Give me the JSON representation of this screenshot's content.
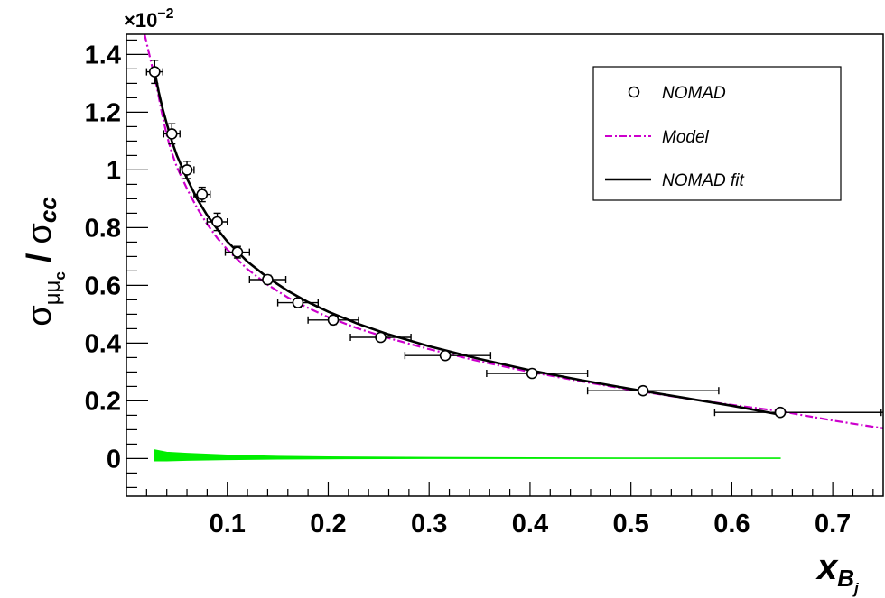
{
  "chart_data": {
    "type": "scatter",
    "title": "",
    "ylabel": "σμμc / σcc",
    "ylabel_parts": {
      "sigma": "σ",
      "numerator_sub": "μμ",
      "numerator_subsub": "c",
      "slash": "/",
      "denominator": "σ",
      "denominator_sub": "cc"
    },
    "xlabel": "xBj",
    "xlabel_parts": {
      "main": "x",
      "sub": "B",
      "subsub": "j"
    },
    "y_multiplier": "×10",
    "y_multiplier_exp": "−2",
    "xlim": [
      0.0,
      0.75
    ],
    "ylim": [
      -0.13,
      1.47
    ],
    "x_ticks": [
      0.1,
      0.2,
      0.3,
      0.4,
      0.5,
      0.6,
      0.7
    ],
    "x_tick_labels": [
      "0.1",
      "0.2",
      "0.3",
      "0.4",
      "0.5",
      "0.6",
      "0.7"
    ],
    "y_ticks": [
      0,
      0.2,
      0.4,
      0.6,
      0.8,
      1.0,
      1.2,
      1.4
    ],
    "y_tick_labels": [
      "0",
      "0.2",
      "0.4",
      "0.6",
      "0.8",
      "1",
      "1.2",
      "1.4"
    ],
    "grid": false,
    "legend_position": "top-right",
    "legend": [
      {
        "label": "NOMAD",
        "style": "open-circle"
      },
      {
        "label": "Model",
        "style": "dash-dot",
        "color": "#cc00cc"
      },
      {
        "label": "NOMAD fit",
        "style": "solid",
        "color": "#000000"
      }
    ],
    "colors": {
      "data": "#000000",
      "model": "#cc00cc",
      "fit": "#000000",
      "band": "#00ee00"
    },
    "series": [
      {
        "name": "NOMAD",
        "kind": "points",
        "points": [
          {
            "x": 0.028,
            "y": 1.34,
            "xerr_lo": 0.008,
            "xerr_hi": 0.008,
            "yerr": 0.04
          },
          {
            "x": 0.045,
            "y": 1.125,
            "xerr_lo": 0.008,
            "xerr_hi": 0.008,
            "yerr": 0.035
          },
          {
            "x": 0.06,
            "y": 1.0,
            "xerr_lo": 0.007,
            "xerr_hi": 0.007,
            "yerr": 0.03
          },
          {
            "x": 0.075,
            "y": 0.915,
            "xerr_lo": 0.008,
            "xerr_hi": 0.008,
            "yerr": 0.025
          },
          {
            "x": 0.09,
            "y": 0.82,
            "xerr_lo": 0.01,
            "xerr_hi": 0.01,
            "yerr": 0.03
          },
          {
            "x": 0.11,
            "y": 0.715,
            "xerr_lo": 0.012,
            "xerr_hi": 0.012,
            "yerr": 0.02
          },
          {
            "x": 0.14,
            "y": 0.62,
            "xerr_lo": 0.018,
            "xerr_hi": 0.018,
            "yerr": 0.015
          },
          {
            "x": 0.17,
            "y": 0.54,
            "xerr_lo": 0.02,
            "xerr_hi": 0.02,
            "yerr": 0.015
          },
          {
            "x": 0.205,
            "y": 0.48,
            "xerr_lo": 0.025,
            "xerr_hi": 0.025,
            "yerr": 0.015
          },
          {
            "x": 0.252,
            "y": 0.42,
            "xerr_lo": 0.03,
            "xerr_hi": 0.03,
            "yerr": 0.012
          },
          {
            "x": 0.316,
            "y": 0.357,
            "xerr_lo": 0.04,
            "xerr_hi": 0.045,
            "yerr": 0.012
          },
          {
            "x": 0.402,
            "y": 0.295,
            "xerr_lo": 0.045,
            "xerr_hi": 0.055,
            "yerr": 0.01
          },
          {
            "x": 0.512,
            "y": 0.235,
            "xerr_lo": 0.055,
            "xerr_hi": 0.075,
            "yerr": 0.01
          },
          {
            "x": 0.648,
            "y": 0.16,
            "xerr_lo": 0.065,
            "xerr_hi": 0.1,
            "yerr": 0.008
          }
        ]
      },
      {
        "name": "Model",
        "kind": "line",
        "x": [
          0.018,
          0.022,
          0.026,
          0.03,
          0.035,
          0.04,
          0.045,
          0.05,
          0.06,
          0.07,
          0.08,
          0.09,
          0.1,
          0.12,
          0.14,
          0.16,
          0.18,
          0.2,
          0.23,
          0.26,
          0.3,
          0.35,
          0.4,
          0.45,
          0.5,
          0.55,
          0.6,
          0.65,
          0.7,
          0.75
        ],
        "y": [
          1.47,
          1.41,
          1.35,
          1.29,
          1.2,
          1.12,
          1.06,
          1.01,
          0.935,
          0.868,
          0.812,
          0.764,
          0.724,
          0.656,
          0.602,
          0.558,
          0.522,
          0.49,
          0.45,
          0.417,
          0.379,
          0.337,
          0.3,
          0.268,
          0.238,
          0.211,
          0.186,
          0.163,
          0.132,
          0.105
        ]
      },
      {
        "name": "NOMAD fit",
        "kind": "line",
        "x": [
          0.028,
          0.032,
          0.036,
          0.04,
          0.045,
          0.05,
          0.06,
          0.07,
          0.08,
          0.09,
          0.1,
          0.12,
          0.14,
          0.16,
          0.18,
          0.2,
          0.23,
          0.26,
          0.3,
          0.35,
          0.4,
          0.45,
          0.5,
          0.55,
          0.6,
          0.648
        ],
        "y": [
          1.34,
          1.27,
          1.21,
          1.16,
          1.1,
          1.05,
          0.97,
          0.9,
          0.843,
          0.795,
          0.752,
          0.682,
          0.627,
          0.581,
          0.542,
          0.509,
          0.466,
          0.43,
          0.389,
          0.345,
          0.306,
          0.272,
          0.241,
          0.212,
          0.183,
          0.152
        ]
      },
      {
        "kind": "band",
        "x": [
          0.028,
          0.04,
          0.06,
          0.1,
          0.15,
          0.2,
          0.3,
          0.4,
          0.5,
          0.6,
          0.648
        ],
        "y_lo": [
          -0.008,
          -0.008,
          -0.006,
          -0.004,
          -0.002,
          -0.001,
          0.0,
          0.0,
          0.0,
          0.0,
          0.0
        ],
        "y_hi": [
          0.03,
          0.022,
          0.018,
          0.012,
          0.008,
          0.006,
          0.004,
          0.003,
          0.002,
          0.002,
          0.002
        ]
      }
    ],
    "overflow_line": {
      "y": 0.16,
      "x_from": 0.648,
      "x_to": 0.75
    }
  }
}
